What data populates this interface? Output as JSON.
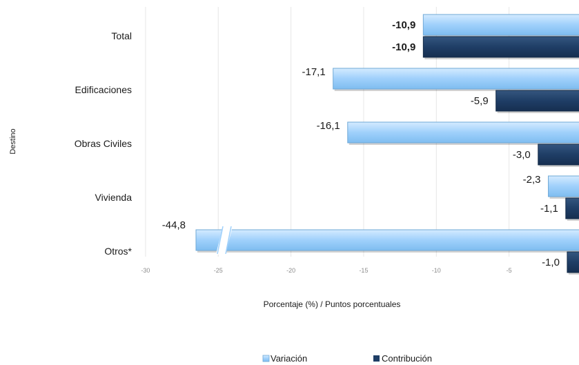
{
  "chart_data": {
    "type": "bar",
    "orientation": "horizontal",
    "categories": [
      "Total",
      "Edificaciones",
      "Obras Civiles",
      "Vivienda",
      "Otros*"
    ],
    "series": [
      {
        "name": "Variación",
        "values": [
          -10.9,
          -17.1,
          -16.1,
          -2.3,
          -44.8
        ],
        "labels": [
          "-10,9",
          "-17,1",
          "-16,1",
          "-2,3",
          "-44,8"
        ],
        "color": "#9fd0fb"
      },
      {
        "name": "Contribución",
        "values": [
          -10.9,
          -5.9,
          -3.0,
          -1.1,
          -1.0
        ],
        "labels": [
          "-10,9",
          "-5,9",
          "-3,0",
          "-1,1",
          "-1,0"
        ],
        "color": "#1f3e66"
      }
    ],
    "bold_category": "Total",
    "xlabel": "Porcentaje (%) / Puntos porcentuales",
    "ylabel": "Destino",
    "xlim": [
      -30,
      0
    ],
    "xticks": [
      -30,
      -25,
      -20,
      -15,
      -10,
      -5
    ],
    "xtick_labels": [
      "-30",
      "-25",
      "-20",
      "-15",
      "-10",
      "-5"
    ],
    "axis_break": true,
    "grid": true,
    "legend_position": "bottom"
  }
}
